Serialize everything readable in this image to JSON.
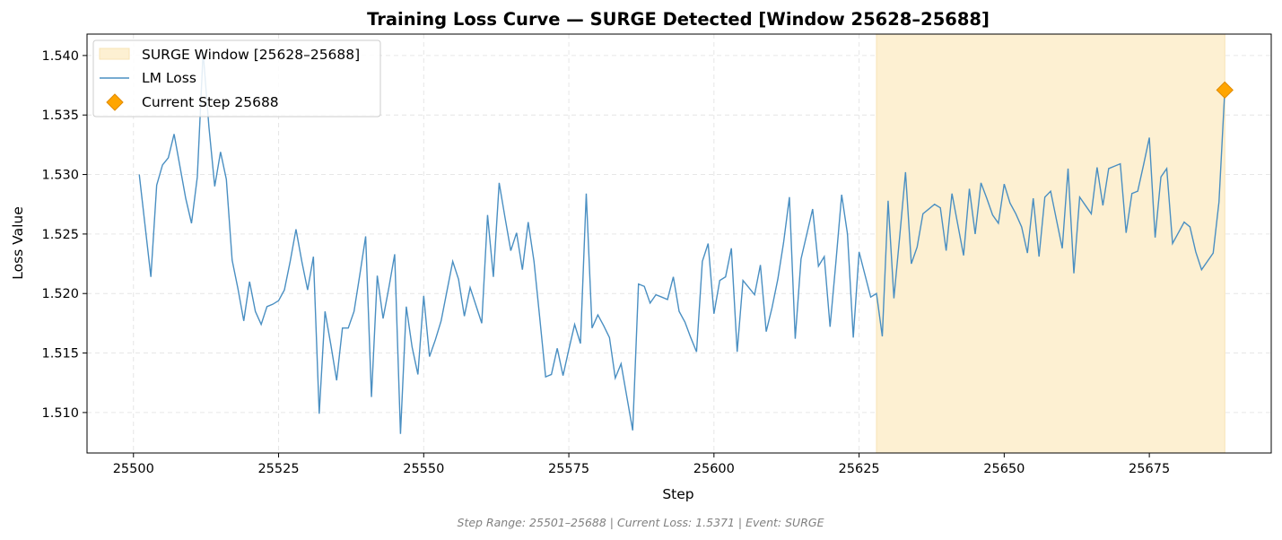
{
  "chart_data": {
    "type": "line",
    "title": "Training Loss Curve — SURGE Detected [Window 25628–25688]",
    "xlabel": "Step",
    "ylabel": "Loss Value",
    "xlim": [
      25492,
      25696
    ],
    "ylim": [
      1.5066,
      1.5418
    ],
    "xticks": [
      25500,
      25525,
      25550,
      25575,
      25600,
      25625,
      25650,
      25675
    ],
    "yticks": [
      1.51,
      1.515,
      1.52,
      1.525,
      1.53,
      1.535,
      1.54
    ],
    "grid": true,
    "legend_position": "top-left",
    "colors": {
      "line": "#4a8fc2",
      "window": "#fdf0d2",
      "marker": "#ffa500",
      "marker_edge": "#e08a00"
    },
    "window": {
      "label": "SURGE Window [25628–25688]",
      "start": 25628,
      "end": 25688
    },
    "current": {
      "label": "Current Step 25688",
      "x": 25688,
      "y": 1.5371
    },
    "series": [
      {
        "name": "LM Loss",
        "x_start": 25501,
        "x_step": 1,
        "values": [
          1.53,
          1.5257,
          1.5214,
          1.5291,
          1.5308,
          1.5314,
          1.5334,
          1.5307,
          1.528,
          1.5259,
          1.5298,
          1.5403,
          1.534,
          1.529,
          1.5319,
          1.5296,
          1.5228,
          1.5204,
          1.5177,
          1.521,
          1.5185,
          1.5174,
          1.5189,
          1.5191,
          1.5194,
          1.5203,
          1.5227,
          1.5254,
          1.5227,
          1.5203,
          1.5231,
          1.5099,
          1.5185,
          1.5157,
          1.5127,
          1.5171,
          1.5171,
          1.5185,
          1.5216,
          1.5248,
          1.5113,
          1.5215,
          1.5179,
          1.5205,
          1.5233,
          1.5082,
          1.5189,
          1.5155,
          1.5132,
          1.5198,
          1.5147,
          1.5161,
          1.5177,
          1.5202,
          1.5227,
          1.5212,
          1.5181,
          1.5205,
          1.519,
          1.5175,
          1.5266,
          1.5214,
          1.5293,
          1.5264,
          1.5236,
          1.5251,
          1.522,
          1.526,
          1.5227,
          1.5179,
          1.513,
          1.5132,
          1.5154,
          1.5131,
          1.5153,
          1.5174,
          1.5158,
          1.5284,
          1.5171,
          1.5182,
          1.5173,
          1.5163,
          1.5129,
          1.5141,
          1.5113,
          1.5085,
          1.5208,
          1.5206,
          1.5192,
          1.5199,
          1.5197,
          1.5195,
          1.5214,
          1.5185,
          1.5176,
          1.5163,
          1.5151,
          1.5227,
          1.5242,
          1.5183,
          1.5211,
          1.5214,
          1.5238,
          1.5151,
          1.5211,
          1.5205,
          1.5199,
          1.5224,
          1.5168,
          1.5188,
          1.5212,
          1.5243,
          1.5281,
          1.5162,
          1.5229,
          1.525,
          1.5271,
          1.5223,
          1.5231,
          1.5172,
          1.5226,
          1.5283,
          1.525,
          1.5163,
          1.5235,
          1.5216,
          1.5197,
          1.52,
          1.5164,
          1.5278,
          1.5196,
          1.5248,
          1.5302,
          1.5225,
          1.5239,
          1.5267,
          1.5271,
          1.5275,
          1.5272,
          1.5236,
          1.5284,
          1.5258,
          1.5232,
          1.5288,
          1.525,
          1.5293,
          1.528,
          1.5266,
          1.5259,
          1.5292,
          1.5276,
          1.5267,
          1.5256,
          1.5234,
          1.528,
          1.5231,
          1.5281,
          1.5286,
          1.5262,
          1.5238,
          1.5305,
          1.5217,
          1.5281,
          1.5274,
          1.5267,
          1.5306,
          1.5274,
          1.5305,
          1.5307,
          1.5309,
          1.5251,
          1.5284,
          1.5286,
          1.5308,
          1.5331,
          1.5247,
          1.5298,
          1.5305,
          1.5242,
          1.5251,
          1.526,
          1.5256,
          1.5235,
          1.522,
          1.5227,
          1.5234,
          1.5277,
          1.5371
        ]
      }
    ]
  },
  "footer": "Step Range: 25501–25688 | Current Loss: 1.5371 | Event: SURGE"
}
